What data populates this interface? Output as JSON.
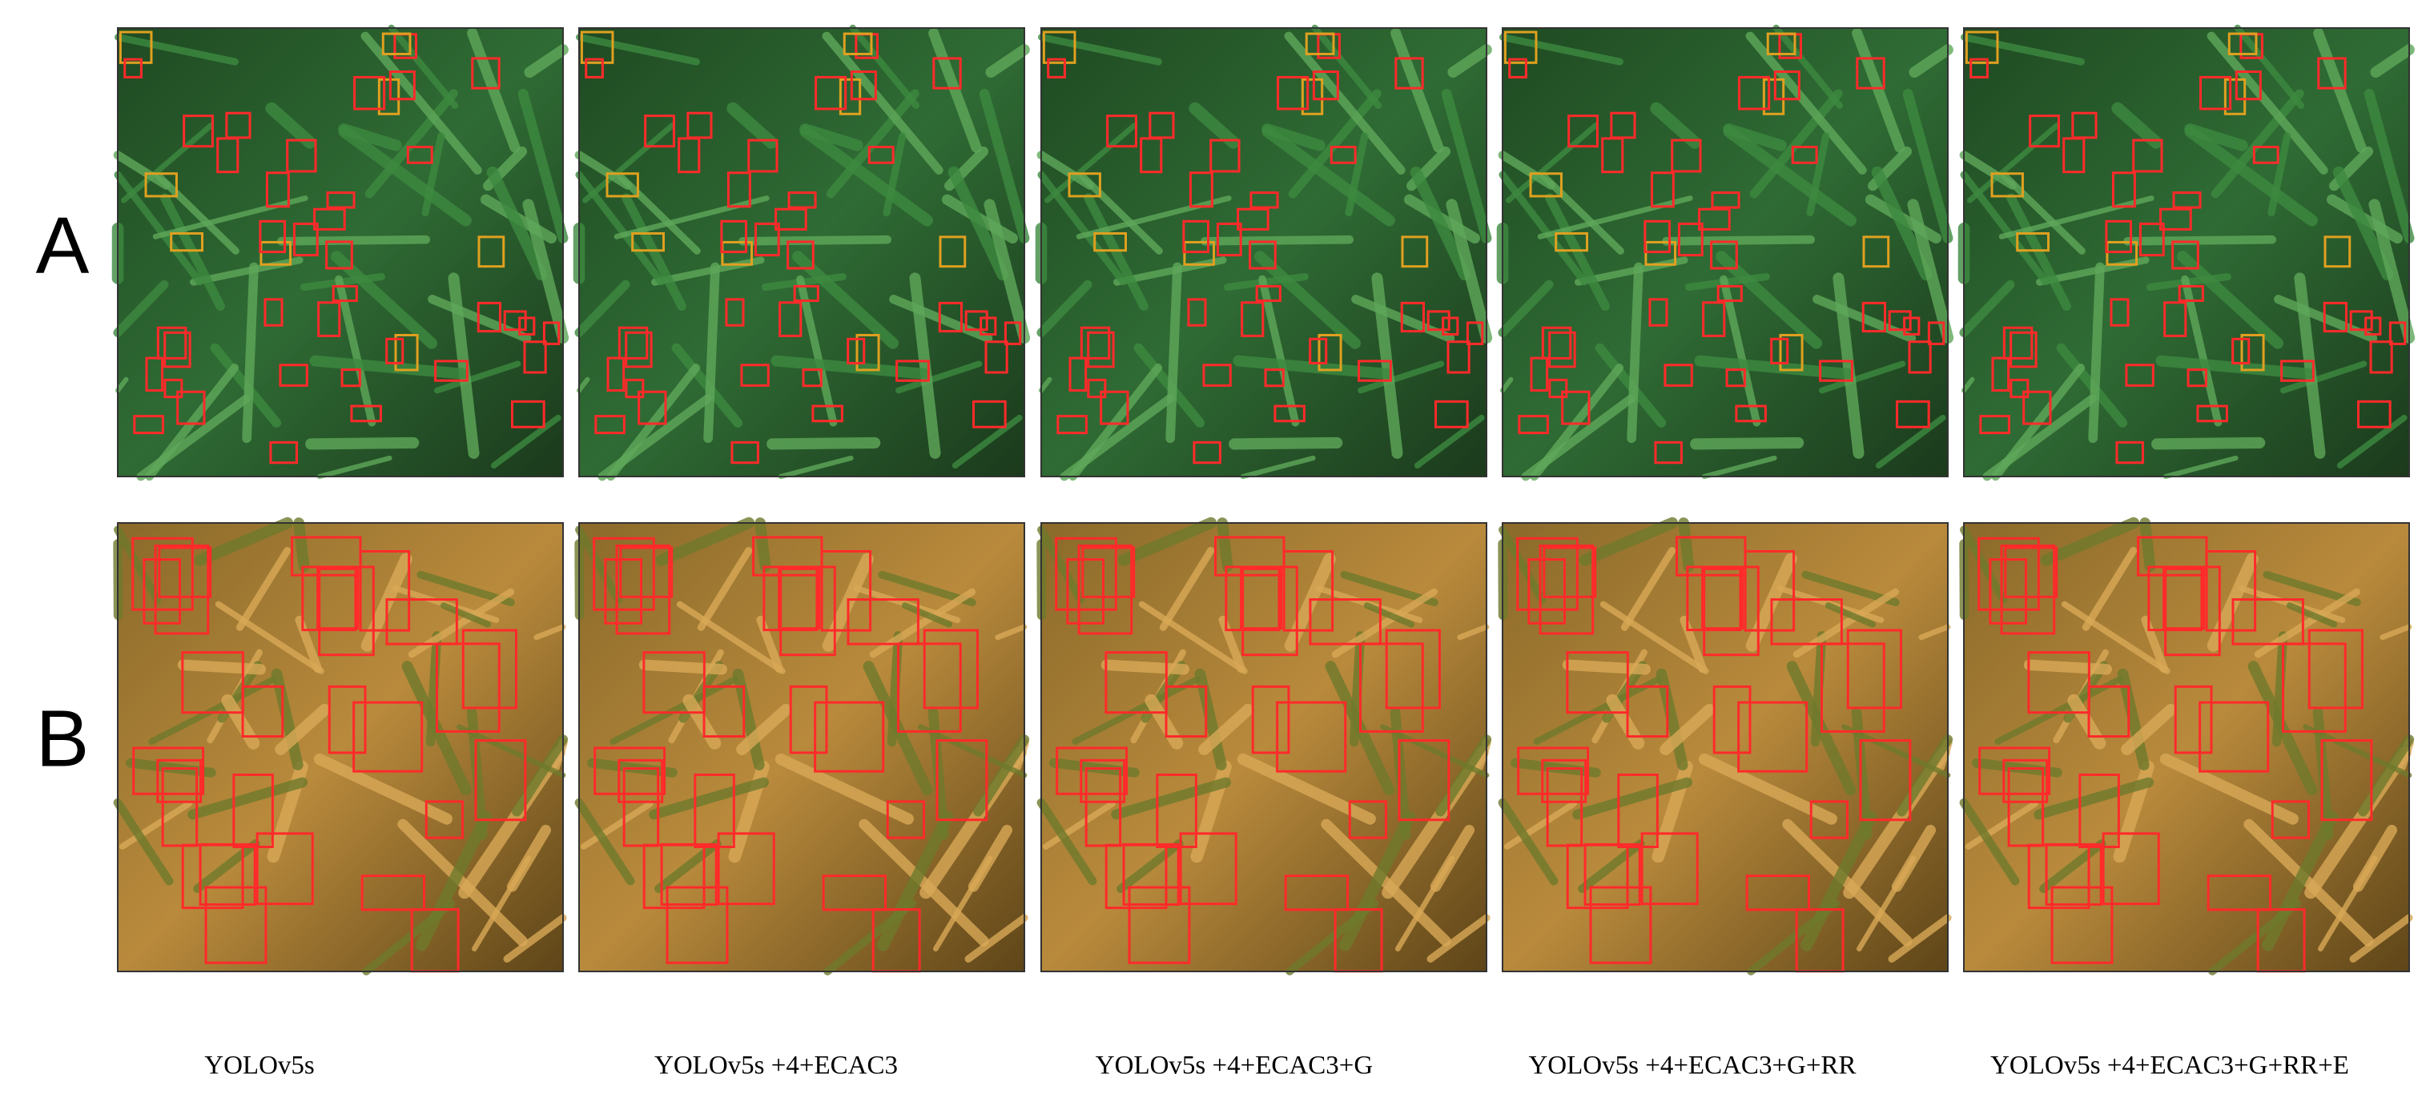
{
  "rows": [
    {
      "label": "A"
    },
    {
      "label": "B"
    }
  ],
  "columns": [
    {
      "label": "YOLOv5s"
    },
    {
      "label": "YOLOv5s +4+ECAC3"
    },
    {
      "label": "YOLOv5s +4+ECAC3+G"
    },
    {
      "label": "YOLOv5s +4+ECAC3+G+RR"
    },
    {
      "label": "YOLOv5s +4+ECAC3+G+RR+E"
    }
  ]
}
